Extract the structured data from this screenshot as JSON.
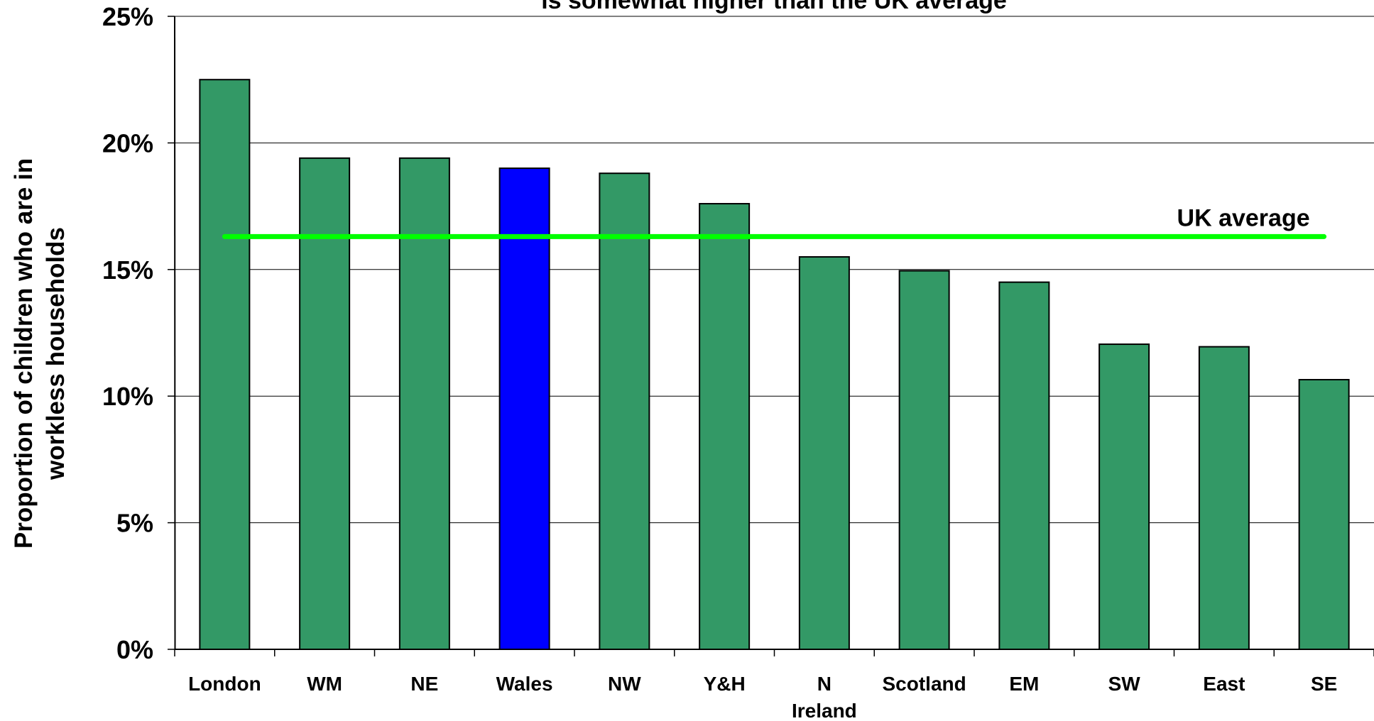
{
  "chart_data": {
    "type": "bar",
    "title": "is somewhat higher than the UK average",
    "ylabel_lines": [
      "Proportion of children who are in",
      "workless households"
    ],
    "xlabel": "",
    "categories": [
      "London",
      "WM",
      "NE",
      "Wales",
      "NW",
      "Y&H",
      "N Ireland",
      "Scotland",
      "EM",
      "SW",
      "East",
      "SE"
    ],
    "values": [
      22.5,
      19.4,
      19.4,
      19.0,
      18.8,
      17.6,
      15.5,
      14.95,
      14.5,
      12.05,
      11.95,
      10.65
    ],
    "ylim": [
      0,
      25
    ],
    "yticks": [
      0,
      5,
      10,
      15,
      20,
      25
    ],
    "ytick_labels": [
      "0%",
      "5%",
      "10%",
      "15%",
      "20%",
      "25%"
    ],
    "grid": true,
    "highlight_category": "Wales",
    "reference_line": {
      "label": "UK average",
      "value": 16.3
    },
    "colors": {
      "bar": "#339966",
      "highlight": "#0000ff",
      "reference_line": "#00ff00",
      "grid": "#000000"
    }
  }
}
